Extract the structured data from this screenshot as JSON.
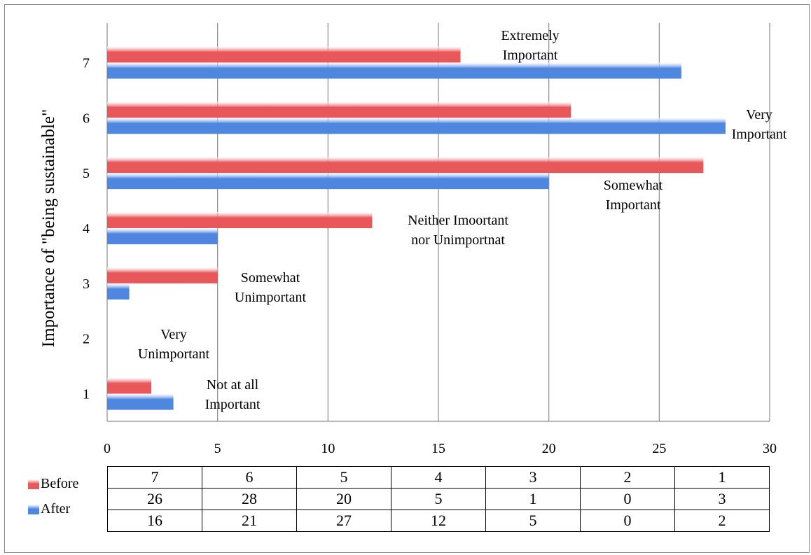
{
  "chart_data": {
    "type": "bar",
    "orientation": "horizontal",
    "ylabel": "Importance of \"being sustainable\"",
    "xlabel": "",
    "xlim": [
      0,
      30
    ],
    "x_ticks": [
      "0",
      "5",
      "10",
      "15",
      "20",
      "25",
      "30"
    ],
    "categories": [
      "1",
      "2",
      "3",
      "4",
      "5",
      "6",
      "7"
    ],
    "series": [
      {
        "name": "Before",
        "color": "#e8575a",
        "values": [
          2,
          0,
          5,
          12,
          27,
          21,
          16
        ]
      },
      {
        "name": "After",
        "color": "#4f86e0",
        "values": [
          3,
          0,
          1,
          5,
          20,
          28,
          26
        ]
      }
    ],
    "grid": "vertical",
    "annotations": [
      {
        "category": "7",
        "lines": [
          "Extremely",
          "Important"
        ]
      },
      {
        "category": "6",
        "lines": [
          "Very",
          "Important"
        ]
      },
      {
        "category": "5",
        "lines": [
          "Somewhat",
          "Important"
        ]
      },
      {
        "category": "4",
        "lines": [
          "Neither Imoortant",
          "nor Unimportnat"
        ]
      },
      {
        "category": "3",
        "lines": [
          "Somewhat",
          "Unimportant"
        ]
      },
      {
        "category": "2",
        "lines": [
          "Very",
          "Unimportant"
        ]
      },
      {
        "category": "1",
        "lines": [
          "Not at all",
          "Important"
        ]
      }
    ],
    "legend": [
      {
        "name": "Before",
        "color": "#e8575a"
      },
      {
        "name": "After",
        "color": "#4f86e0"
      }
    ],
    "data_table": {
      "header": [
        "7",
        "6",
        "5",
        "4",
        "3",
        "2",
        "1"
      ],
      "rows": [
        [
          "26",
          "28",
          "20",
          "5",
          "1",
          "0",
          "3"
        ],
        [
          "16",
          "21",
          "27",
          "12",
          "5",
          "0",
          "2"
        ]
      ]
    }
  }
}
